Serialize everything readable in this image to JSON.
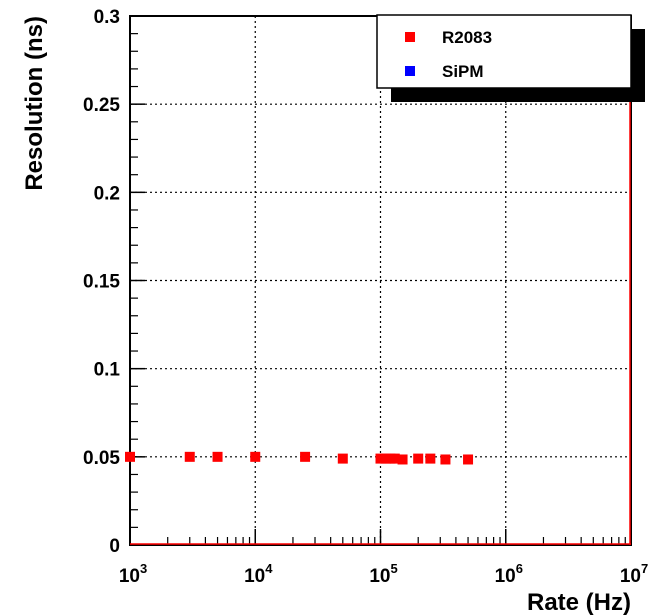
{
  "chart_data": {
    "type": "scatter",
    "xlabel": "Rate (Hz)",
    "ylabel": "Resolution (ns)",
    "xscale": "log",
    "xlim": [
      1000,
      10000000
    ],
    "ylim": [
      0,
      0.3
    ],
    "grid": true,
    "legend_position": "top-right",
    "x_ticks": [
      {
        "base": "10",
        "exp": "3",
        "value": 1000
      },
      {
        "base": "10",
        "exp": "4",
        "value": 10000
      },
      {
        "base": "10",
        "exp": "5",
        "value": 100000
      },
      {
        "base": "10",
        "exp": "6",
        "value": 1000000
      },
      {
        "base": "10",
        "exp": "7",
        "value": 10000000
      }
    ],
    "y_ticks": [
      {
        "label": "0",
        "value": 0
      },
      {
        "label": "0.05",
        "value": 0.05
      },
      {
        "label": "0.1",
        "value": 0.1
      },
      {
        "label": "0.15",
        "value": 0.15
      },
      {
        "label": "0.2",
        "value": 0.2
      },
      {
        "label": "0.25",
        "value": 0.25
      },
      {
        "label": "0.3",
        "value": 0.3
      }
    ],
    "series": [
      {
        "name": "R2083",
        "color": "#ff0000",
        "points": [
          {
            "x": 1000,
            "y": 0.05
          },
          {
            "x": 3000,
            "y": 0.05
          },
          {
            "x": 5000,
            "y": 0.05
          },
          {
            "x": 10000,
            "y": 0.05
          },
          {
            "x": 25000,
            "y": 0.05
          },
          {
            "x": 50000,
            "y": 0.049
          },
          {
            "x": 100000,
            "y": 0.049
          },
          {
            "x": 110000,
            "y": 0.049
          },
          {
            "x": 120000,
            "y": 0.049
          },
          {
            "x": 130000,
            "y": 0.049
          },
          {
            "x": 150000,
            "y": 0.0485
          },
          {
            "x": 200000,
            "y": 0.049
          },
          {
            "x": 250000,
            "y": 0.049
          },
          {
            "x": 330000,
            "y": 0.0485
          },
          {
            "x": 500000,
            "y": 0.0485
          }
        ]
      },
      {
        "name": "SiPM",
        "color": "#0000ff",
        "points": []
      }
    ]
  }
}
